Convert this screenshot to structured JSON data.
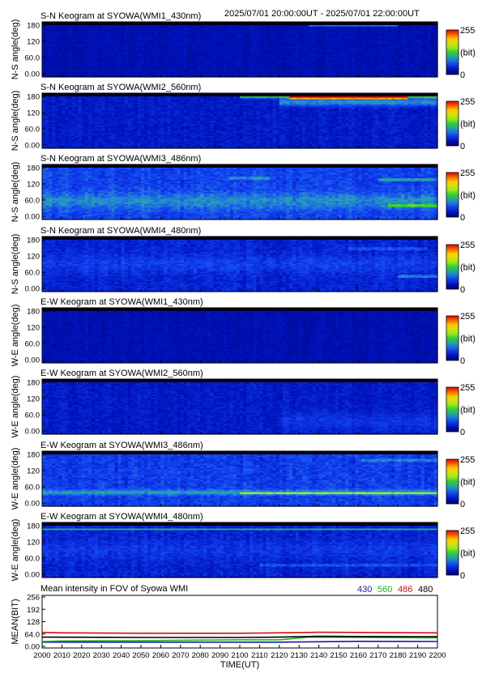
{
  "header": {
    "time_range": "2025/07/01 20:00:00UT - 2025/07/01 22:00:00UT"
  },
  "colorbar": {
    "max_label": "255",
    "unit_label": "(bit)",
    "min_label": "0"
  },
  "chart_data": [
    {
      "type": "heatmap",
      "title": "S-N Keogram at SYOWA(WMI1_430nm)",
      "ylabel": "N-S angle(deg)",
      "yticks": [
        "180",
        "120",
        "60.0",
        "0.00"
      ],
      "ylim": [
        0,
        180
      ],
      "xlim": [
        2000,
        2200
      ],
      "base_level": 25,
      "noise": 6,
      "bands": [
        {
          "y": 168,
          "width": 3,
          "x_start": 2135,
          "x_end": 2180,
          "intensity": 55
        }
      ]
    },
    {
      "type": "heatmap",
      "title": "S-N Keogram at SYOWA(WMI2_560nm)",
      "ylabel": "N-S angle(deg)",
      "yticks": [
        "180",
        "120",
        "60.0",
        "0.00"
      ],
      "ylim": [
        0,
        180
      ],
      "xlim": [
        2000,
        2200
      ],
      "base_level": 35,
      "noise": 8,
      "bands": [
        {
          "y": 170,
          "width": 6,
          "x_start": 2100,
          "x_end": 2200,
          "intensity": 110
        },
        {
          "y": 165,
          "width": 4,
          "x_start": 2125,
          "x_end": 2185,
          "intensity": 200
        },
        {
          "y": 150,
          "width": 12,
          "x_start": 2120,
          "x_end": 2200,
          "intensity": 55
        }
      ]
    },
    {
      "type": "heatmap",
      "title": "S-N Keogram at SYOWA(WMI3_486nm)",
      "ylabel": "N-S angle(deg)",
      "yticks": [
        "180",
        "120",
        "60.0",
        "0.00"
      ],
      "ylim": [
        0,
        180
      ],
      "xlim": [
        2000,
        2200
      ],
      "base_level": 58,
      "noise": 12,
      "bands": [
        {
          "y": 135,
          "width": 2,
          "x_start": 2095,
          "x_end": 2115,
          "intensity": 140
        },
        {
          "y": 130,
          "width": 3,
          "x_start": 2170,
          "x_end": 2200,
          "intensity": 70
        },
        {
          "y": 60,
          "width": 25,
          "x_start": 2000,
          "x_end": 2200,
          "intensity": 30
        },
        {
          "y": 45,
          "width": 4,
          "x_start": 2175,
          "x_end": 2200,
          "intensity": 80
        }
      ]
    },
    {
      "type": "heatmap",
      "title": "S-N Keogram at SYOWA(WMI4_480nm)",
      "ylabel": "N-S angle(deg)",
      "yticks": [
        "180",
        "120",
        "60.0",
        "0.00"
      ],
      "ylim": [
        0,
        180
      ],
      "xlim": [
        2000,
        2200
      ],
      "base_level": 40,
      "noise": 10,
      "bands": [
        {
          "y": 140,
          "width": 2,
          "x_start": 2155,
          "x_end": 2195,
          "intensity": 110
        },
        {
          "y": 50,
          "width": 3,
          "x_start": 2180,
          "x_end": 2200,
          "intensity": 70
        },
        {
          "y": 90,
          "width": 30,
          "x_start": 2000,
          "x_end": 2200,
          "intensity": 15
        }
      ]
    },
    {
      "type": "heatmap",
      "title": "E-W Keogram at SYOWA(WMI1_430nm)",
      "ylabel": "W-E angle(deg)",
      "yticks": [
        "180",
        "120",
        "60.0",
        "0.00"
      ],
      "ylim": [
        0,
        180
      ],
      "xlim": [
        2000,
        2200
      ],
      "base_level": 25,
      "noise": 6,
      "bands": []
    },
    {
      "type": "heatmap",
      "title": "E-W Keogram at SYOWA(WMI2_560nm)",
      "ylabel": "W-E angle(deg)",
      "yticks": [
        "180",
        "120",
        "60.0",
        "0.00"
      ],
      "ylim": [
        0,
        180
      ],
      "xlim": [
        2000,
        2200
      ],
      "base_level": 35,
      "noise": 8,
      "bands": [
        {
          "y": 40,
          "width": 30,
          "x_start": 2120,
          "x_end": 2200,
          "intensity": 15
        }
      ]
    },
    {
      "type": "heatmap",
      "title": "E-W Keogram at SYOWA(WMI3_486nm)",
      "ylabel": "W-E angle(deg)",
      "yticks": [
        "180",
        "120",
        "60.0",
        "0.00"
      ],
      "ylim": [
        0,
        180
      ],
      "xlim": [
        2000,
        2200
      ],
      "base_level": 55,
      "noise": 12,
      "bands": [
        {
          "y": 45,
          "width": 8,
          "x_start": 2000,
          "x_end": 2200,
          "intensity": 45
        },
        {
          "y": 42,
          "width": 3,
          "x_start": 2100,
          "x_end": 2200,
          "intensity": 70
        },
        {
          "y": 150,
          "width": 3,
          "x_start": 2160,
          "x_end": 2200,
          "intensity": 50
        }
      ]
    },
    {
      "type": "heatmap",
      "title": "E-W Keogram at SYOWA(WMI4_480nm)",
      "ylabel": "W-E angle(deg)",
      "yticks": [
        "180",
        "120",
        "60.0",
        "0.00"
      ],
      "ylim": [
        0,
        180
      ],
      "xlim": [
        2000,
        2200
      ],
      "base_level": 40,
      "noise": 10,
      "bands": [
        {
          "y": 158,
          "width": 2,
          "x_start": 2000,
          "x_end": 2200,
          "intensity": 70
        },
        {
          "y": 40,
          "width": 3,
          "x_start": 2110,
          "x_end": 2200,
          "intensity": 45
        },
        {
          "y": 90,
          "width": 30,
          "x_start": 2000,
          "x_end": 2200,
          "intensity": 12
        }
      ]
    },
    {
      "type": "line",
      "title": "Mean intensity in FOV of Syowa WMI",
      "xlabel": "TIME(UT)",
      "ylabel": "MEAN(BIT)",
      "xlim": [
        2000,
        2200
      ],
      "ylim": [
        0,
        256
      ],
      "xticks": [
        "2000",
        "2010",
        "2020",
        "2030",
        "2040",
        "2050",
        "2060",
        "2070",
        "2080",
        "2090",
        "2100",
        "2110",
        "2120",
        "2130",
        "2140",
        "2150",
        "2160",
        "2170",
        "2180",
        "2190",
        "2200"
      ],
      "yticks": [
        "256",
        "192",
        "128",
        "64.0",
        "0.00"
      ],
      "grid": false,
      "legend": "top-right",
      "series": [
        {
          "name": "430",
          "color": "#1a1aa6",
          "x": [
            2000,
            2050,
            2100,
            2120,
            2140,
            2160,
            2200
          ],
          "y": [
            22,
            22,
            22,
            22,
            24,
            26,
            25
          ]
        },
        {
          "name": "560",
          "color": "#22b022",
          "x": [
            2000,
            2010,
            2050,
            2100,
            2120,
            2135,
            2160,
            2200
          ],
          "y": [
            25,
            28,
            30,
            34,
            34,
            48,
            46,
            44
          ]
        },
        {
          "name": "486",
          "color": "#d01010",
          "x": [
            2000,
            2010,
            2050,
            2100,
            2120,
            2140,
            2180,
            2200
          ],
          "y": [
            72,
            70,
            68,
            68,
            70,
            73,
            71,
            70
          ]
        },
        {
          "name": "480",
          "color": "#000000",
          "x": [
            2000,
            2050,
            2100,
            2120,
            2140,
            2160,
            2200
          ],
          "y": [
            48,
            46,
            46,
            48,
            52,
            51,
            50
          ]
        }
      ]
    }
  ]
}
